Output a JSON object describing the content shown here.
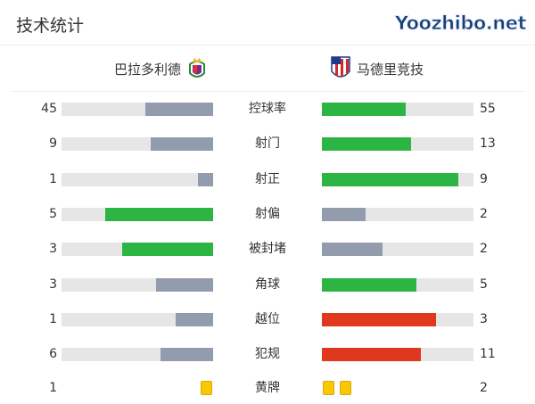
{
  "title": "技术统计",
  "home": {
    "name": "巴拉多利德",
    "crest": "real-valladolid-crest-icon"
  },
  "away": {
    "name": "马德里竞技",
    "crest": "atletico-madrid-crest-icon"
  },
  "colors": {
    "better": "#2db543",
    "worse": "#939cad",
    "bad": "#e0381f",
    "track": "#e6e6e6",
    "card": "#f8c800"
  },
  "stats": [
    {
      "label": "控球率",
      "home": "45",
      "away": "55",
      "homeColor": "#939cad",
      "awayColor": "#2db543",
      "homeFrac": 0.45,
      "awayFrac": 0.55
    },
    {
      "label": "射门",
      "home": "9",
      "away": "13",
      "homeColor": "#939cad",
      "awayColor": "#2db543",
      "homeFrac": 0.41,
      "awayFrac": 0.59
    },
    {
      "label": "射正",
      "home": "1",
      "away": "9",
      "homeColor": "#939cad",
      "awayColor": "#2db543",
      "homeFrac": 0.1,
      "awayFrac": 0.9
    },
    {
      "label": "射偏",
      "home": "5",
      "away": "2",
      "homeColor": "#2db543",
      "awayColor": "#939cad",
      "homeFrac": 0.71,
      "awayFrac": 0.29
    },
    {
      "label": "被封堵",
      "home": "3",
      "away": "2",
      "homeColor": "#2db543",
      "awayColor": "#939cad",
      "homeFrac": 0.6,
      "awayFrac": 0.4
    },
    {
      "label": "角球",
      "home": "3",
      "away": "5",
      "homeColor": "#939cad",
      "awayColor": "#2db543",
      "homeFrac": 0.375,
      "awayFrac": 0.625
    },
    {
      "label": "越位",
      "home": "1",
      "away": "3",
      "homeColor": "#939cad",
      "awayColor": "#e0381f",
      "homeFrac": 0.25,
      "awayFrac": 0.75
    },
    {
      "label": "犯规",
      "home": "6",
      "away": "11",
      "homeColor": "#939cad",
      "awayColor": "#e0381f",
      "homeFrac": 0.35,
      "awayFrac": 0.65
    }
  ],
  "cards": {
    "label": "黄牌",
    "home": "1",
    "away": "2",
    "homeCount": 1,
    "awayCount": 2
  },
  "watermark": "Yoozhibo.net"
}
